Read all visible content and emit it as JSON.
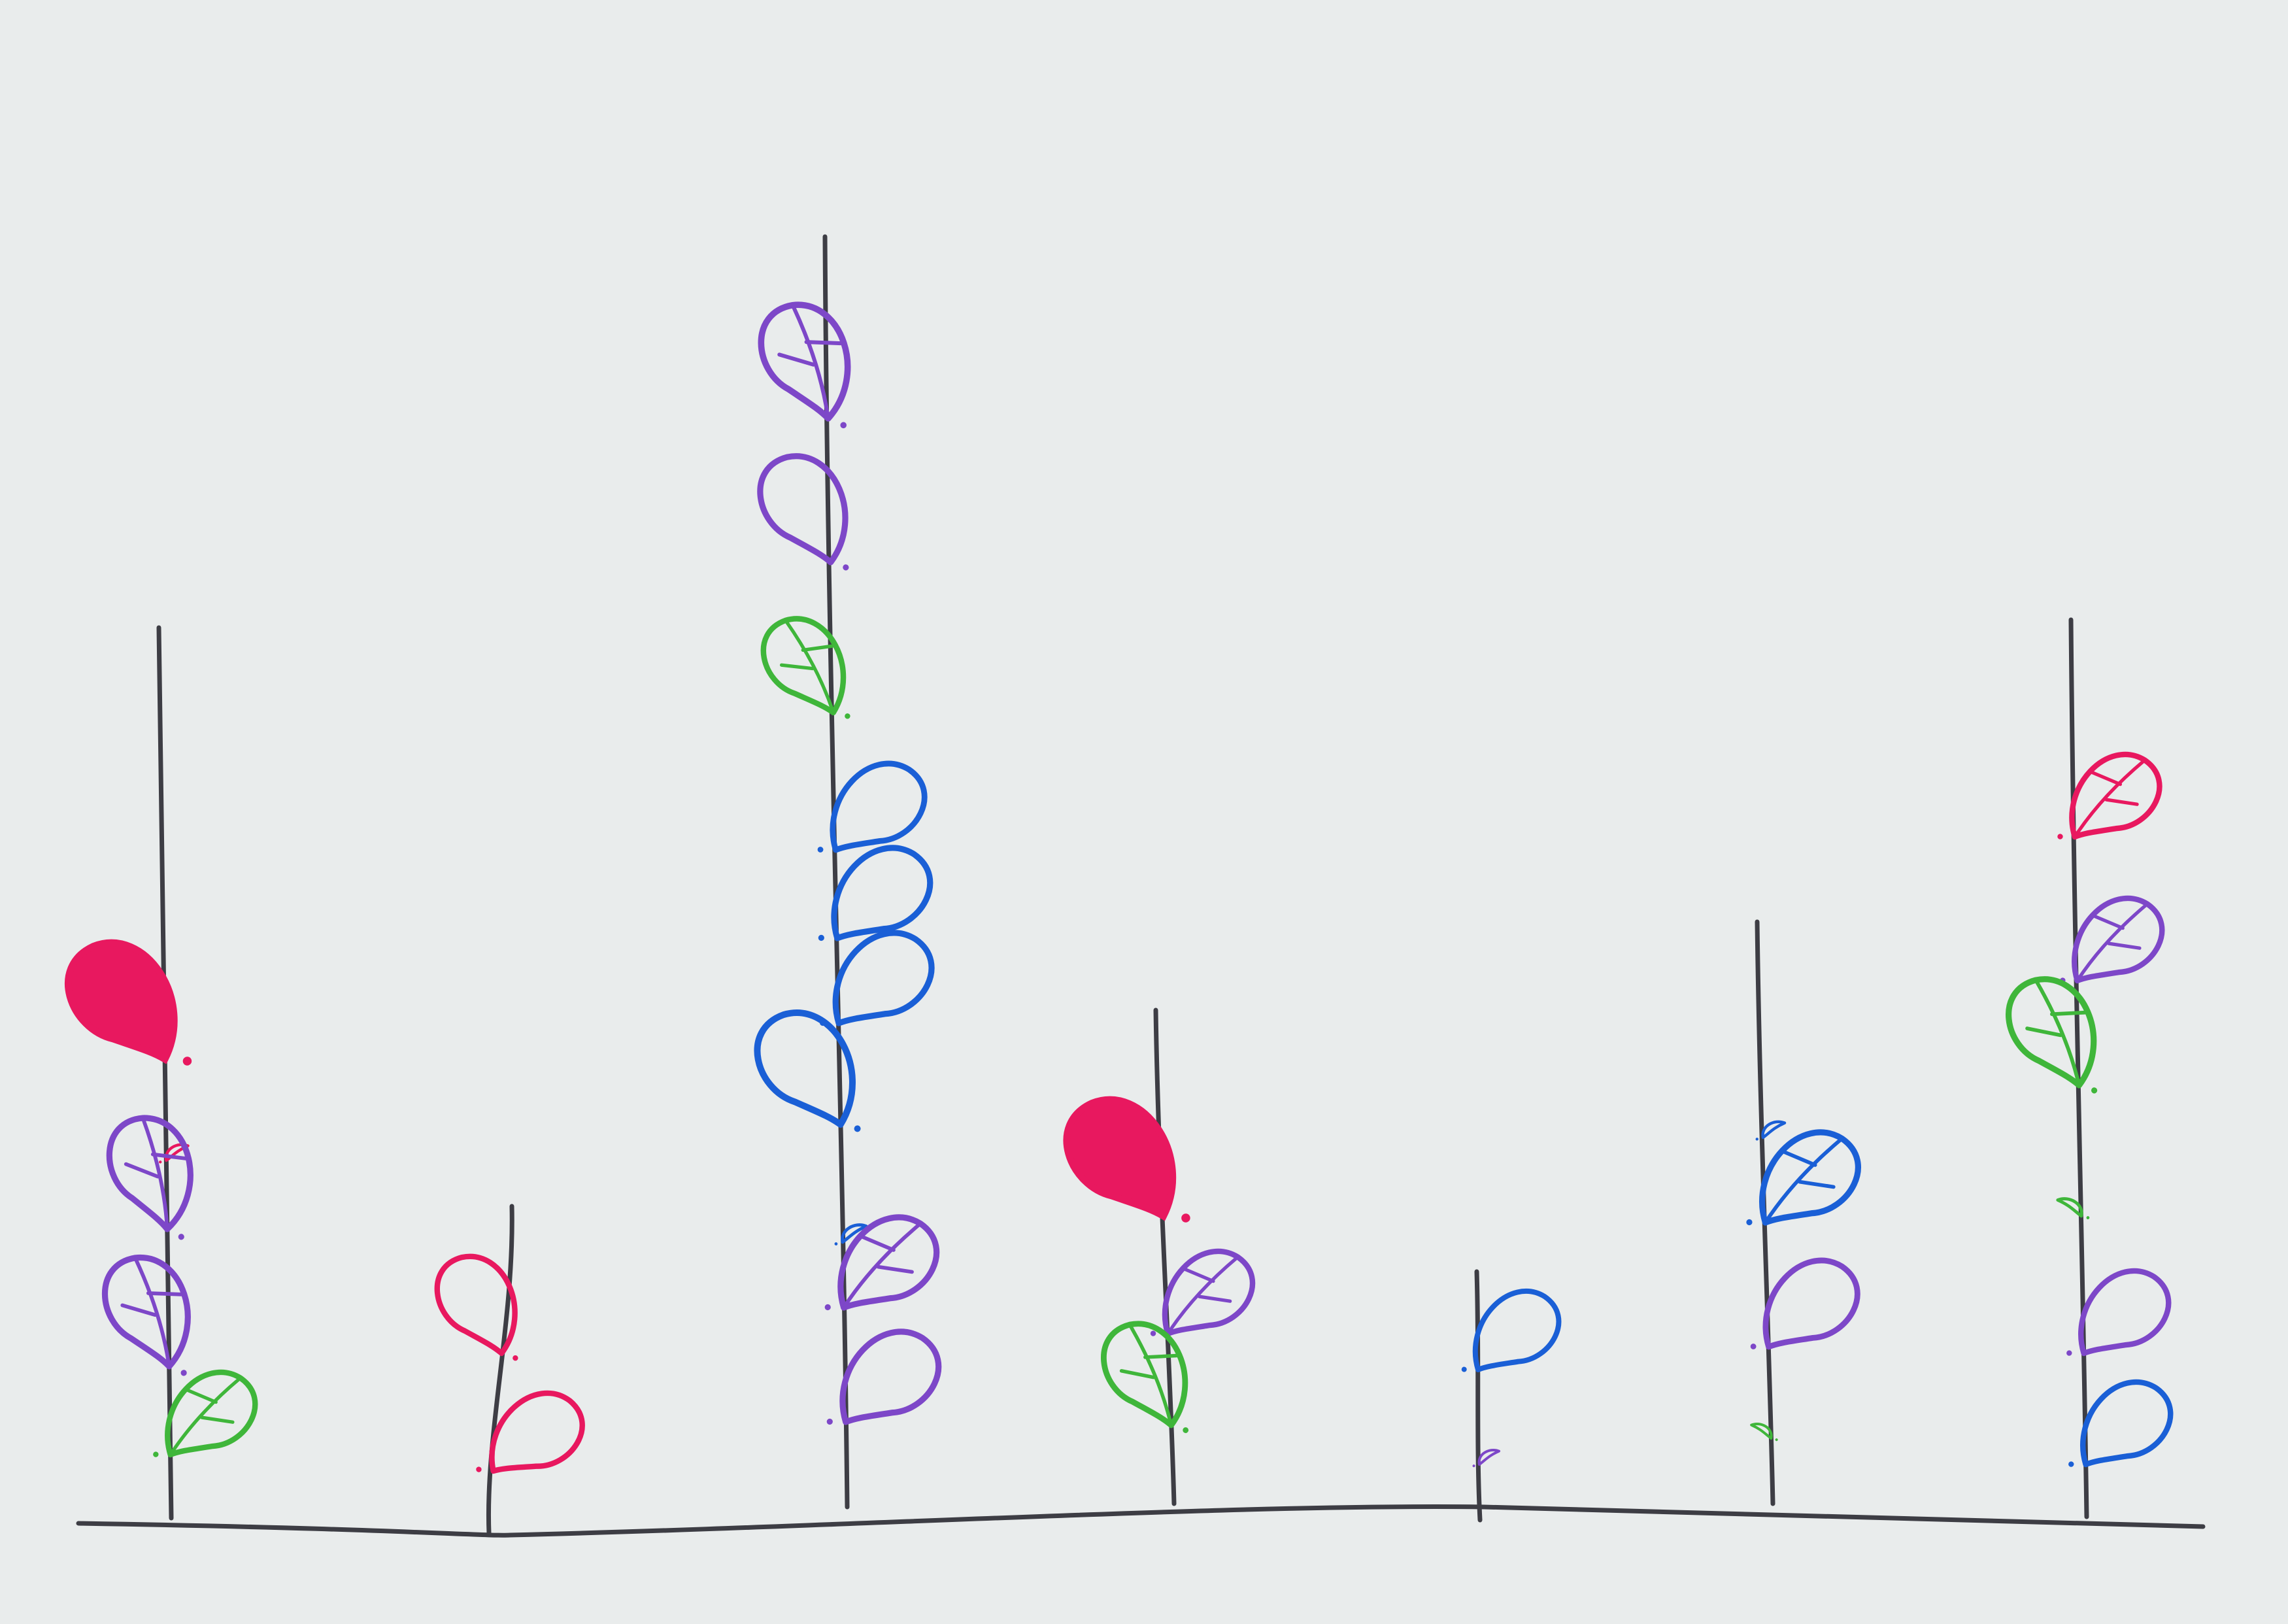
{
  "palette": {
    "paper": "#e9ecec",
    "ink": "#3d3d44",
    "magenta": "#e8185f",
    "purple": "#7d47c8",
    "blue": "#1a5fd6",
    "green": "#3fb63a"
  },
  "plants": [
    {
      "name": "plant-1",
      "leaves": [
        {
          "color": "magenta",
          "kind": "filled",
          "side": "left"
        },
        {
          "color": "magenta",
          "kind": "small",
          "side": "right"
        },
        {
          "color": "purple",
          "kind": "veined",
          "side": "left"
        },
        {
          "color": "purple",
          "kind": "veined",
          "side": "left"
        },
        {
          "color": "green",
          "kind": "veined",
          "side": "right"
        }
      ]
    },
    {
      "name": "plant-2",
      "leaves": [
        {
          "color": "magenta",
          "kind": "outline",
          "side": "left"
        },
        {
          "color": "magenta",
          "kind": "outline",
          "side": "right"
        }
      ]
    },
    {
      "name": "plant-3",
      "leaves": [
        {
          "color": "purple",
          "kind": "veined",
          "side": "left"
        },
        {
          "color": "purple",
          "kind": "outline",
          "side": "left"
        },
        {
          "color": "green",
          "kind": "veined",
          "side": "left"
        },
        {
          "color": "blue",
          "kind": "outline",
          "side": "right"
        },
        {
          "color": "blue",
          "kind": "outline",
          "side": "right"
        },
        {
          "color": "blue",
          "kind": "outline",
          "side": "right"
        },
        {
          "color": "blue",
          "kind": "outline",
          "side": "left"
        },
        {
          "color": "blue",
          "kind": "small",
          "side": "right"
        },
        {
          "color": "purple",
          "kind": "veined",
          "side": "right"
        },
        {
          "color": "purple",
          "kind": "outline",
          "side": "right"
        }
      ]
    },
    {
      "name": "plant-4",
      "leaves": [
        {
          "color": "magenta",
          "kind": "filled",
          "side": "left"
        },
        {
          "color": "purple",
          "kind": "veined",
          "side": "right"
        },
        {
          "color": "green",
          "kind": "veined",
          "side": "left"
        }
      ]
    },
    {
      "name": "plant-5",
      "leaves": [
        {
          "color": "blue",
          "kind": "outline",
          "side": "right"
        },
        {
          "color": "purple",
          "kind": "small",
          "side": "right"
        }
      ]
    },
    {
      "name": "plant-6",
      "leaves": [
        {
          "color": "blue",
          "kind": "small",
          "side": "right"
        },
        {
          "color": "blue",
          "kind": "veined",
          "side": "right"
        },
        {
          "color": "purple",
          "kind": "outline",
          "side": "right"
        },
        {
          "color": "green",
          "kind": "small",
          "side": "left"
        }
      ]
    },
    {
      "name": "plant-7",
      "leaves": [
        {
          "color": "magenta",
          "kind": "veined",
          "side": "right"
        },
        {
          "color": "purple",
          "kind": "veined",
          "side": "right"
        },
        {
          "color": "green",
          "kind": "veined",
          "side": "left"
        },
        {
          "color": "green",
          "kind": "small",
          "side": "left"
        },
        {
          "color": "purple",
          "kind": "outline",
          "side": "right"
        },
        {
          "color": "blue",
          "kind": "outline",
          "side": "right"
        }
      ]
    }
  ]
}
